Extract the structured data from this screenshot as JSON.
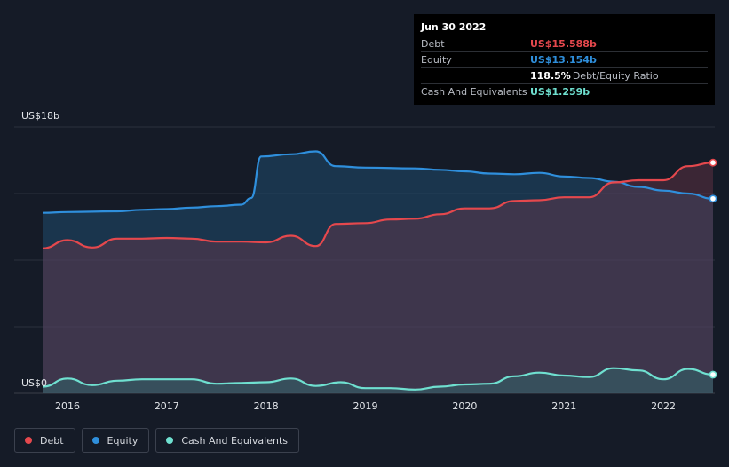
{
  "chart_data": {
    "type": "area",
    "y_axis": {
      "top_label": "US$18b",
      "bottom_label": "US$0",
      "ylim": [
        0,
        18
      ]
    },
    "x_ticks": [
      "2016",
      "2017",
      "2018",
      "2019",
      "2020",
      "2021",
      "2022"
    ],
    "x_range": [
      2015.75,
      2022.5
    ],
    "series": [
      {
        "name": "Equity",
        "color": "#2f8fdc",
        "points": [
          [
            2015.75,
            12.2
          ],
          [
            2016.0,
            12.25
          ],
          [
            2016.5,
            12.3
          ],
          [
            2016.75,
            12.4
          ],
          [
            2017.0,
            12.45
          ],
          [
            2017.25,
            12.55
          ],
          [
            2017.5,
            12.65
          ],
          [
            2017.75,
            12.75
          ],
          [
            2017.85,
            13.2
          ],
          [
            2017.95,
            16.0
          ],
          [
            2018.25,
            16.15
          ],
          [
            2018.5,
            16.35
          ],
          [
            2018.7,
            15.35
          ],
          [
            2019.0,
            15.25
          ],
          [
            2019.5,
            15.2
          ],
          [
            2019.75,
            15.1
          ],
          [
            2020.0,
            15.0
          ],
          [
            2020.25,
            14.85
          ],
          [
            2020.5,
            14.8
          ],
          [
            2020.75,
            14.9
          ],
          [
            2021.0,
            14.65
          ],
          [
            2021.25,
            14.55
          ],
          [
            2021.5,
            14.3
          ],
          [
            2021.75,
            13.95
          ],
          [
            2022.0,
            13.7
          ],
          [
            2022.25,
            13.5
          ],
          [
            2022.5,
            13.154
          ]
        ]
      },
      {
        "name": "Debt",
        "color": "#e5484d",
        "points": [
          [
            2015.75,
            9.8
          ],
          [
            2016.0,
            10.35
          ],
          [
            2016.25,
            9.85
          ],
          [
            2016.5,
            10.45
          ],
          [
            2016.75,
            10.45
          ],
          [
            2017.0,
            10.5
          ],
          [
            2017.25,
            10.45
          ],
          [
            2017.5,
            10.25
          ],
          [
            2017.75,
            10.25
          ],
          [
            2018.0,
            10.2
          ],
          [
            2018.25,
            10.65
          ],
          [
            2018.5,
            9.95
          ],
          [
            2018.7,
            11.45
          ],
          [
            2019.0,
            11.5
          ],
          [
            2019.25,
            11.75
          ],
          [
            2019.5,
            11.8
          ],
          [
            2019.75,
            12.1
          ],
          [
            2020.0,
            12.5
          ],
          [
            2020.25,
            12.5
          ],
          [
            2020.5,
            13.0
          ],
          [
            2020.75,
            13.05
          ],
          [
            2021.0,
            13.25
          ],
          [
            2021.25,
            13.25
          ],
          [
            2021.5,
            14.25
          ],
          [
            2021.75,
            14.4
          ],
          [
            2022.0,
            14.4
          ],
          [
            2022.25,
            15.35
          ],
          [
            2022.5,
            15.588
          ]
        ]
      },
      {
        "name": "Cash And Equivalents",
        "color": "#6fe0d0",
        "points": [
          [
            2015.75,
            0.45
          ],
          [
            2016.0,
            1.0
          ],
          [
            2016.25,
            0.55
          ],
          [
            2016.5,
            0.85
          ],
          [
            2016.75,
            0.95
          ],
          [
            2017.0,
            0.95
          ],
          [
            2017.25,
            0.95
          ],
          [
            2017.5,
            0.65
          ],
          [
            2017.75,
            0.7
          ],
          [
            2018.0,
            0.75
          ],
          [
            2018.25,
            1.0
          ],
          [
            2018.5,
            0.5
          ],
          [
            2018.75,
            0.75
          ],
          [
            2019.0,
            0.35
          ],
          [
            2019.25,
            0.35
          ],
          [
            2019.5,
            0.25
          ],
          [
            2019.75,
            0.45
          ],
          [
            2020.0,
            0.6
          ],
          [
            2020.25,
            0.65
          ],
          [
            2020.5,
            1.15
          ],
          [
            2020.75,
            1.4
          ],
          [
            2021.0,
            1.2
          ],
          [
            2021.25,
            1.1
          ],
          [
            2021.5,
            1.7
          ],
          [
            2021.75,
            1.55
          ],
          [
            2022.0,
            0.95
          ],
          [
            2022.25,
            1.65
          ],
          [
            2022.5,
            1.259
          ]
        ]
      }
    ]
  },
  "tooltip": {
    "date": "Jun 30 2022",
    "rows": [
      {
        "label": "Debt",
        "value": "US$15.588b",
        "color": "#e5484d"
      },
      {
        "label": "Equity",
        "value": "US$13.154b",
        "color": "#2f8fdc"
      },
      {
        "label": "",
        "value": "118.5%",
        "note": "Debt/Equity Ratio",
        "color": "#ffffff"
      },
      {
        "label": "Cash And Equivalents",
        "value": "US$1.259b",
        "color": "#6fe0d0"
      }
    ]
  },
  "legend": [
    {
      "label": "Debt",
      "color": "#e5484d"
    },
    {
      "label": "Equity",
      "color": "#2f8fdc"
    },
    {
      "label": "Cash And Equivalents",
      "color": "#6fe0d0"
    }
  ]
}
